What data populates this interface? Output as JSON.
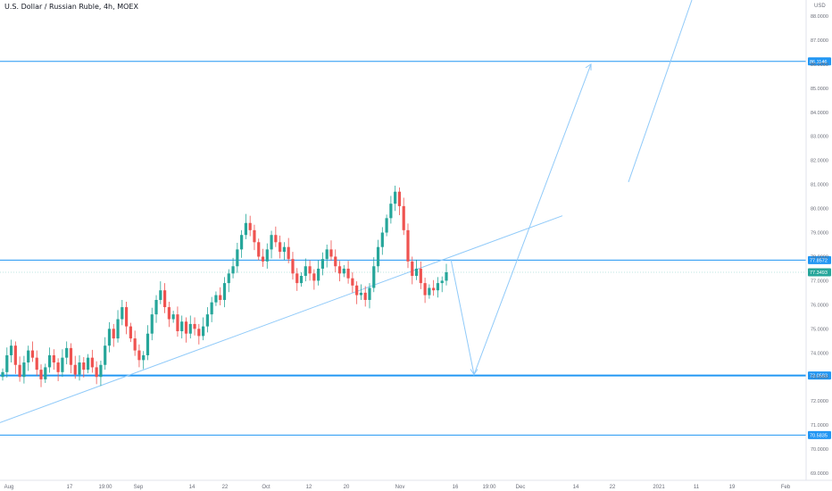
{
  "header": {
    "title": "U.S. Dollar / Russian Ruble, 4h, MOEX",
    "currency": "USD"
  },
  "colors": {
    "up": "#26a69a",
    "down": "#ef5350",
    "level": "#2196f3",
    "projection": "#90caf9",
    "axis_text": "#6a6d78",
    "last_price_bg": "#26a69a"
  },
  "chart_data": {
    "type": "candlestick",
    "symbol": "USDRUB",
    "interval": "4h",
    "exchange": "MOEX",
    "ylim": [
      68.7,
      88.6
    ],
    "y_ticks": [
      "69.0000",
      "70.0000",
      "71.0000",
      "72.0000",
      "73.0000",
      "74.0000",
      "75.0000",
      "76.0000",
      "77.0000",
      "78.0000",
      "79.0000",
      "80.0000",
      "81.0000",
      "82.0000",
      "83.0000",
      "84.0000",
      "85.0000",
      "86.0000",
      "87.0000",
      "88.0000"
    ],
    "x_ticks": [
      "Aug",
      "17",
      "19:00",
      "Sep",
      "14",
      "22",
      "Oct",
      "12",
      "20",
      "Nov",
      "16",
      "19:00",
      "Dec",
      "14",
      "22",
      "2021",
      "11",
      "19",
      "Feb"
    ],
    "horizontal_levels": [
      {
        "label": "86.1146",
        "value": 86.1146
      },
      {
        "label": "77.8572",
        "value": 77.8572
      },
      {
        "label": "73.0583",
        "value": 73.0583
      },
      {
        "label": "70.5835",
        "value": 70.5835
      }
    ],
    "last_price": {
      "label": "77.3493",
      "value": 77.3493
    },
    "closes": [
      73.2,
      73.9,
      74.3,
      73.5,
      73.0,
      73.6,
      74.1,
      73.8,
      73.3,
      72.9,
      73.4,
      73.9,
      73.6,
      73.2,
      73.8,
      74.2,
      73.5,
      73.1,
      73.6,
      73.3,
      73.8,
      73.4,
      73.0,
      73.5,
      74.3,
      75.0,
      74.6,
      75.4,
      75.9,
      75.1,
      74.6,
      74.1,
      73.7,
      73.9,
      74.8,
      75.6,
      76.2,
      76.6,
      75.9,
      75.4,
      75.6,
      74.9,
      75.3,
      74.8,
      75.2,
      75.0,
      74.7,
      75.1,
      75.6,
      76.1,
      76.4,
      76.2,
      76.9,
      77.3,
      77.6,
      78.3,
      78.9,
      79.4,
      79.1,
      78.6,
      78.0,
      77.8,
      78.3,
      78.9,
      78.6,
      78.2,
      78.4,
      77.9,
      77.3,
      76.9,
      77.2,
      77.6,
      77.3,
      77.0,
      77.5,
      77.9,
      78.3,
      78.0,
      77.6,
      77.3,
      77.5,
      77.1,
      76.8,
      76.4,
      76.5,
      76.2,
      76.7,
      77.6,
      78.4,
      79.0,
      79.6,
      80.2,
      80.7,
      80.1,
      79.1,
      77.8,
      77.2,
      77.5,
      76.9,
      76.4,
      76.7,
      76.6,
      76.9,
      77.0,
      77.35
    ],
    "trendline": {
      "from": {
        "x": "Jul",
        "y": 71.1
      },
      "to": {
        "x": "Nov 30",
        "y": 79.7
      }
    },
    "projection_path": [
      {
        "x": "Nov 16",
        "y": 77.9
      },
      {
        "x": "Nov 19 19:00",
        "y": 73.1
      },
      {
        "x": "Dec 19",
        "y": 86.0
      }
    ],
    "projection_line": {
      "from": {
        "x": "Dec 26",
        "y": 81.1
      },
      "to": {
        "x": "2021 Jan 4",
        "y": 88.6
      }
    },
    "grid": false,
    "xlabel": "",
    "ylabel": ""
  }
}
